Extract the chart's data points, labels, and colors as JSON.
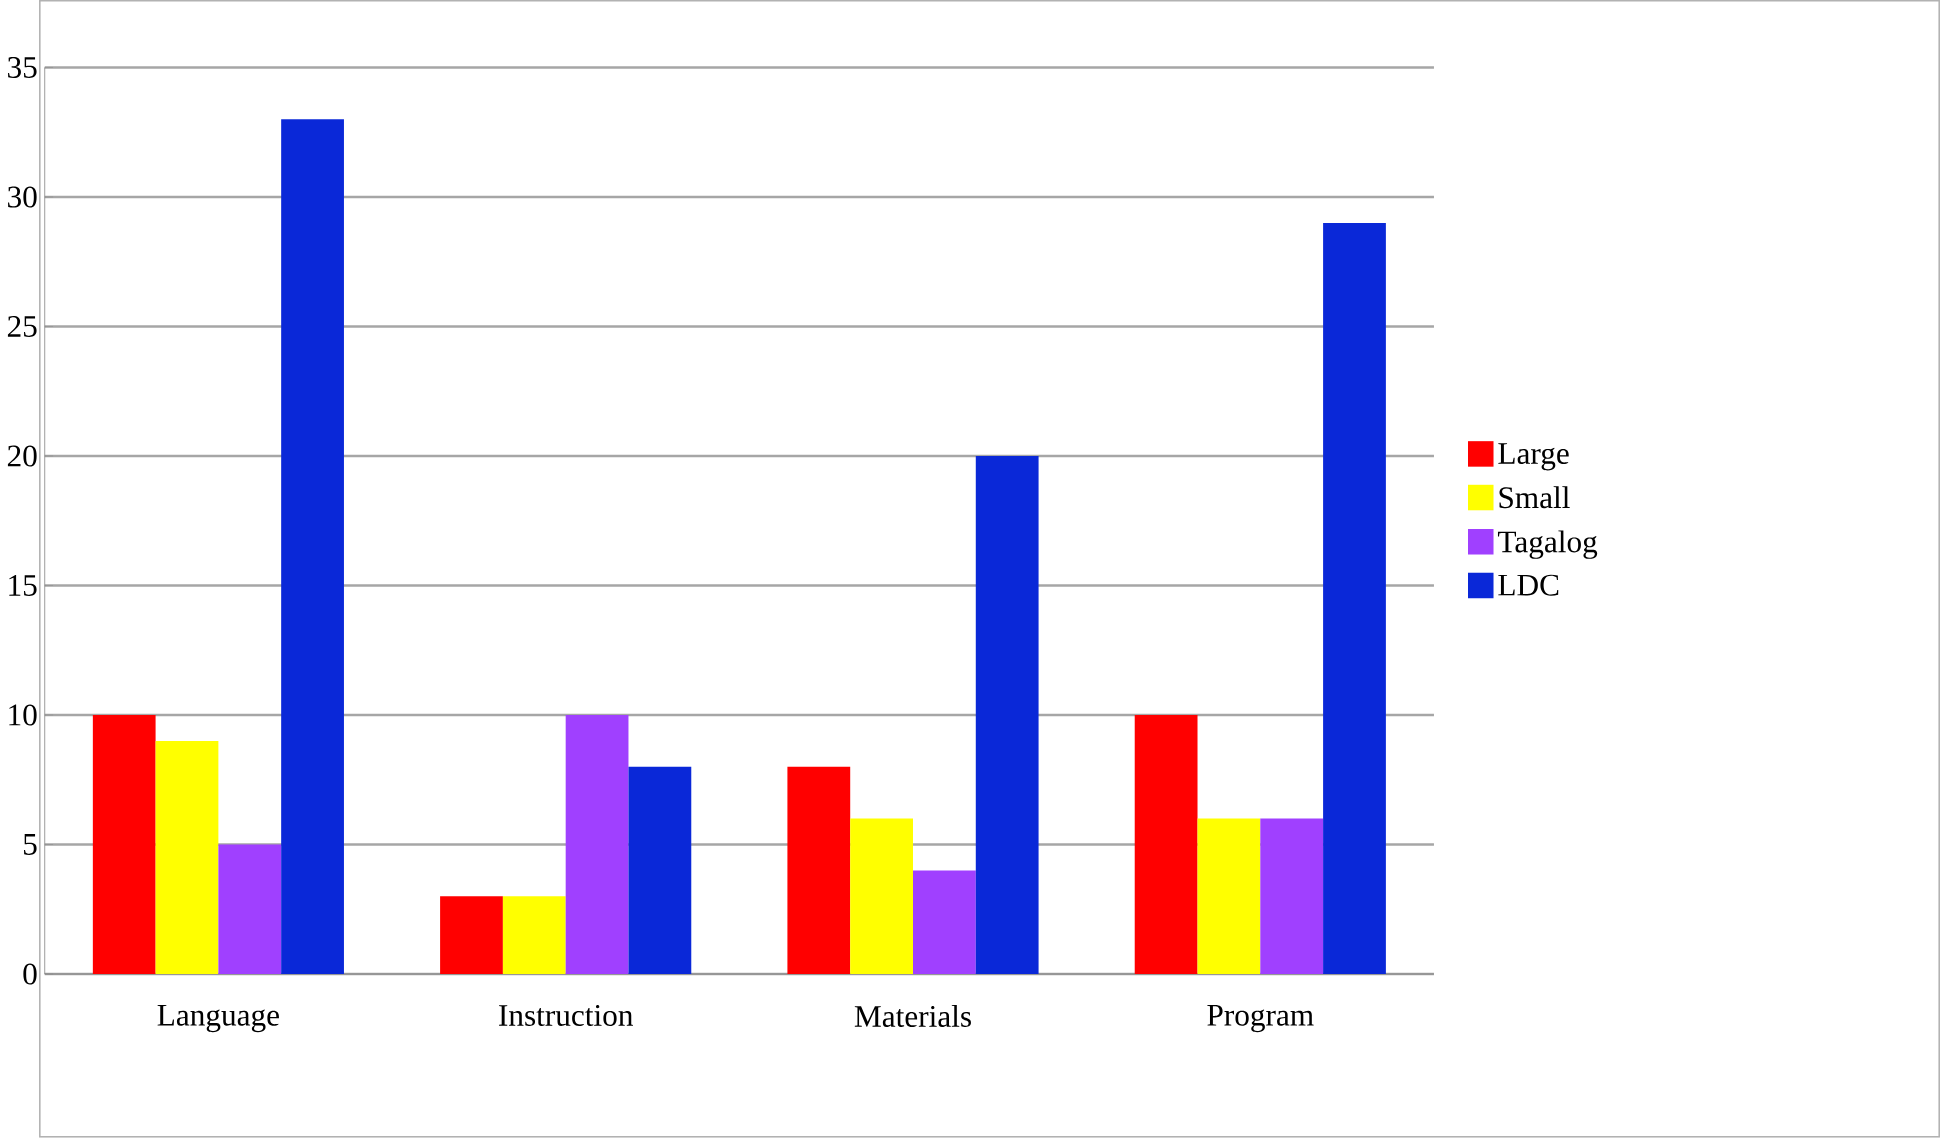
{
  "chart_data": {
    "type": "bar",
    "categories": [
      "Language",
      "Instruction",
      "Materials",
      "Program"
    ],
    "series": [
      {
        "name": "Large",
        "color": "#ff0000",
        "values": [
          10,
          3,
          8,
          10
        ]
      },
      {
        "name": "Small",
        "color": "#ffff00",
        "values": [
          9,
          3,
          6,
          6
        ]
      },
      {
        "name": "Tagalog",
        "color": "#a040ff",
        "values": [
          5,
          10,
          4,
          6
        ]
      },
      {
        "name": "LDC",
        "color": "#0a28d8",
        "values": [
          33,
          8,
          20,
          29
        ]
      }
    ],
    "ylim": [
      0,
      35
    ],
    "yticks": [
      0,
      5,
      10,
      15,
      20,
      25,
      30,
      35
    ],
    "grid": "y",
    "legend": "right"
  }
}
